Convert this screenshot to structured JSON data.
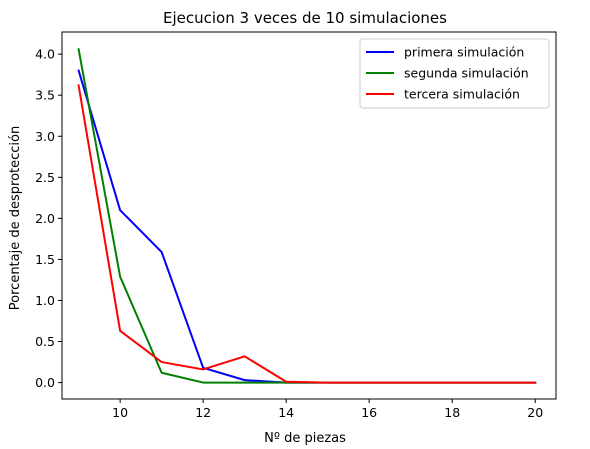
{
  "chart_data": {
    "type": "line",
    "title": "Ejecucion 3 veces de 10 simulaciones",
    "xlabel": "Nº de piezas",
    "ylabel": "Porcentaje de desprotección",
    "xlim": [
      8.6,
      20.5
    ],
    "ylim": [
      -0.2,
      4.27
    ],
    "xticks": [
      10,
      12,
      14,
      16,
      18,
      20
    ],
    "yticks": [
      0.0,
      0.5,
      1.0,
      1.5,
      2.0,
      2.5,
      3.0,
      3.5,
      4.0
    ],
    "x": [
      9,
      10,
      11,
      12,
      13,
      14,
      15,
      16,
      17,
      18,
      19,
      20
    ],
    "series": [
      {
        "name": "primera simulación",
        "color": "#0000ff",
        "values": [
          3.8,
          2.1,
          1.59,
          0.18,
          0.03,
          0.0,
          0.0,
          0.0,
          0.0,
          0.0,
          0.0,
          0.0
        ]
      },
      {
        "name": "segunda simulación",
        "color": "#008000",
        "values": [
          4.06,
          1.29,
          0.12,
          0.0,
          0.0,
          0.0,
          0.0,
          0.0,
          0.0,
          0.0,
          0.0,
          0.0
        ]
      },
      {
        "name": "tercera simulación",
        "color": "#ff0000",
        "values": [
          3.62,
          0.63,
          0.25,
          0.16,
          0.32,
          0.01,
          0.0,
          0.0,
          0.0,
          0.0,
          0.0,
          0.0
        ]
      }
    ],
    "grid": false,
    "legend_position": "top-right"
  }
}
